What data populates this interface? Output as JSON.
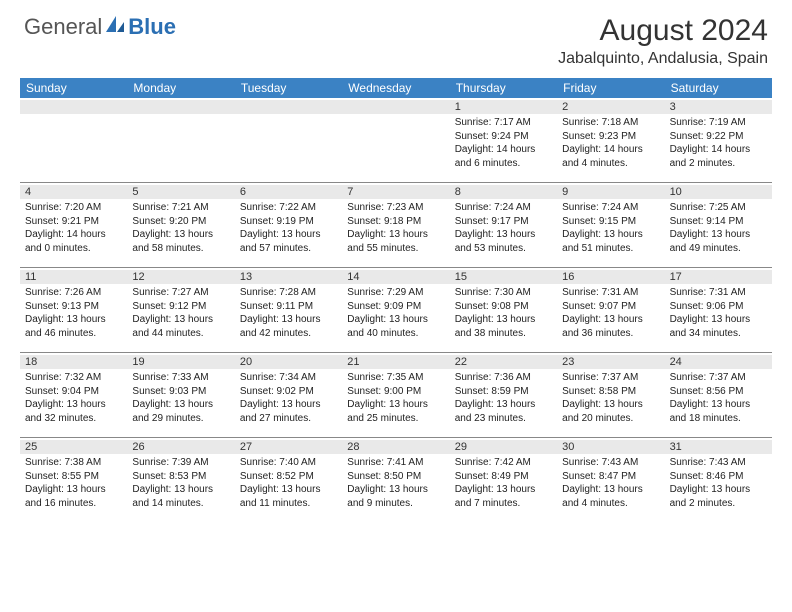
{
  "brand": {
    "word1": "General",
    "word2": "Blue"
  },
  "title": "August 2024",
  "location": "Jabalquinto, Andalusia, Spain",
  "colors": {
    "header_bg": "#3b82c4",
    "header_text": "#ffffff",
    "date_strip_bg": "#e9e9e9",
    "border": "#888888",
    "brand_accent": "#2b6fb3"
  },
  "layout": {
    "columns": 7,
    "rows": 5,
    "first_day_column": 4
  },
  "day_names": [
    "Sunday",
    "Monday",
    "Tuesday",
    "Wednesday",
    "Thursday",
    "Friday",
    "Saturday"
  ],
  "days": [
    {
      "date": 1,
      "sunrise": "7:17 AM",
      "sunset": "9:24 PM",
      "daylight": "14 hours and 6 minutes."
    },
    {
      "date": 2,
      "sunrise": "7:18 AM",
      "sunset": "9:23 PM",
      "daylight": "14 hours and 4 minutes."
    },
    {
      "date": 3,
      "sunrise": "7:19 AM",
      "sunset": "9:22 PM",
      "daylight": "14 hours and 2 minutes."
    },
    {
      "date": 4,
      "sunrise": "7:20 AM",
      "sunset": "9:21 PM",
      "daylight": "14 hours and 0 minutes."
    },
    {
      "date": 5,
      "sunrise": "7:21 AM",
      "sunset": "9:20 PM",
      "daylight": "13 hours and 58 minutes."
    },
    {
      "date": 6,
      "sunrise": "7:22 AM",
      "sunset": "9:19 PM",
      "daylight": "13 hours and 57 minutes."
    },
    {
      "date": 7,
      "sunrise": "7:23 AM",
      "sunset": "9:18 PM",
      "daylight": "13 hours and 55 minutes."
    },
    {
      "date": 8,
      "sunrise": "7:24 AM",
      "sunset": "9:17 PM",
      "daylight": "13 hours and 53 minutes."
    },
    {
      "date": 9,
      "sunrise": "7:24 AM",
      "sunset": "9:15 PM",
      "daylight": "13 hours and 51 minutes."
    },
    {
      "date": 10,
      "sunrise": "7:25 AM",
      "sunset": "9:14 PM",
      "daylight": "13 hours and 49 minutes."
    },
    {
      "date": 11,
      "sunrise": "7:26 AM",
      "sunset": "9:13 PM",
      "daylight": "13 hours and 46 minutes."
    },
    {
      "date": 12,
      "sunrise": "7:27 AM",
      "sunset": "9:12 PM",
      "daylight": "13 hours and 44 minutes."
    },
    {
      "date": 13,
      "sunrise": "7:28 AM",
      "sunset": "9:11 PM",
      "daylight": "13 hours and 42 minutes."
    },
    {
      "date": 14,
      "sunrise": "7:29 AM",
      "sunset": "9:09 PM",
      "daylight": "13 hours and 40 minutes."
    },
    {
      "date": 15,
      "sunrise": "7:30 AM",
      "sunset": "9:08 PM",
      "daylight": "13 hours and 38 minutes."
    },
    {
      "date": 16,
      "sunrise": "7:31 AM",
      "sunset": "9:07 PM",
      "daylight": "13 hours and 36 minutes."
    },
    {
      "date": 17,
      "sunrise": "7:31 AM",
      "sunset": "9:06 PM",
      "daylight": "13 hours and 34 minutes."
    },
    {
      "date": 18,
      "sunrise": "7:32 AM",
      "sunset": "9:04 PM",
      "daylight": "13 hours and 32 minutes."
    },
    {
      "date": 19,
      "sunrise": "7:33 AM",
      "sunset": "9:03 PM",
      "daylight": "13 hours and 29 minutes."
    },
    {
      "date": 20,
      "sunrise": "7:34 AM",
      "sunset": "9:02 PM",
      "daylight": "13 hours and 27 minutes."
    },
    {
      "date": 21,
      "sunrise": "7:35 AM",
      "sunset": "9:00 PM",
      "daylight": "13 hours and 25 minutes."
    },
    {
      "date": 22,
      "sunrise": "7:36 AM",
      "sunset": "8:59 PM",
      "daylight": "13 hours and 23 minutes."
    },
    {
      "date": 23,
      "sunrise": "7:37 AM",
      "sunset": "8:58 PM",
      "daylight": "13 hours and 20 minutes."
    },
    {
      "date": 24,
      "sunrise": "7:37 AM",
      "sunset": "8:56 PM",
      "daylight": "13 hours and 18 minutes."
    },
    {
      "date": 25,
      "sunrise": "7:38 AM",
      "sunset": "8:55 PM",
      "daylight": "13 hours and 16 minutes."
    },
    {
      "date": 26,
      "sunrise": "7:39 AM",
      "sunset": "8:53 PM",
      "daylight": "13 hours and 14 minutes."
    },
    {
      "date": 27,
      "sunrise": "7:40 AM",
      "sunset": "8:52 PM",
      "daylight": "13 hours and 11 minutes."
    },
    {
      "date": 28,
      "sunrise": "7:41 AM",
      "sunset": "8:50 PM",
      "daylight": "13 hours and 9 minutes."
    },
    {
      "date": 29,
      "sunrise": "7:42 AM",
      "sunset": "8:49 PM",
      "daylight": "13 hours and 7 minutes."
    },
    {
      "date": 30,
      "sunrise": "7:43 AM",
      "sunset": "8:47 PM",
      "daylight": "13 hours and 4 minutes."
    },
    {
      "date": 31,
      "sunrise": "7:43 AM",
      "sunset": "8:46 PM",
      "daylight": "13 hours and 2 minutes."
    }
  ],
  "labels": {
    "sunrise": "Sunrise:",
    "sunset": "Sunset:",
    "daylight": "Daylight:"
  }
}
